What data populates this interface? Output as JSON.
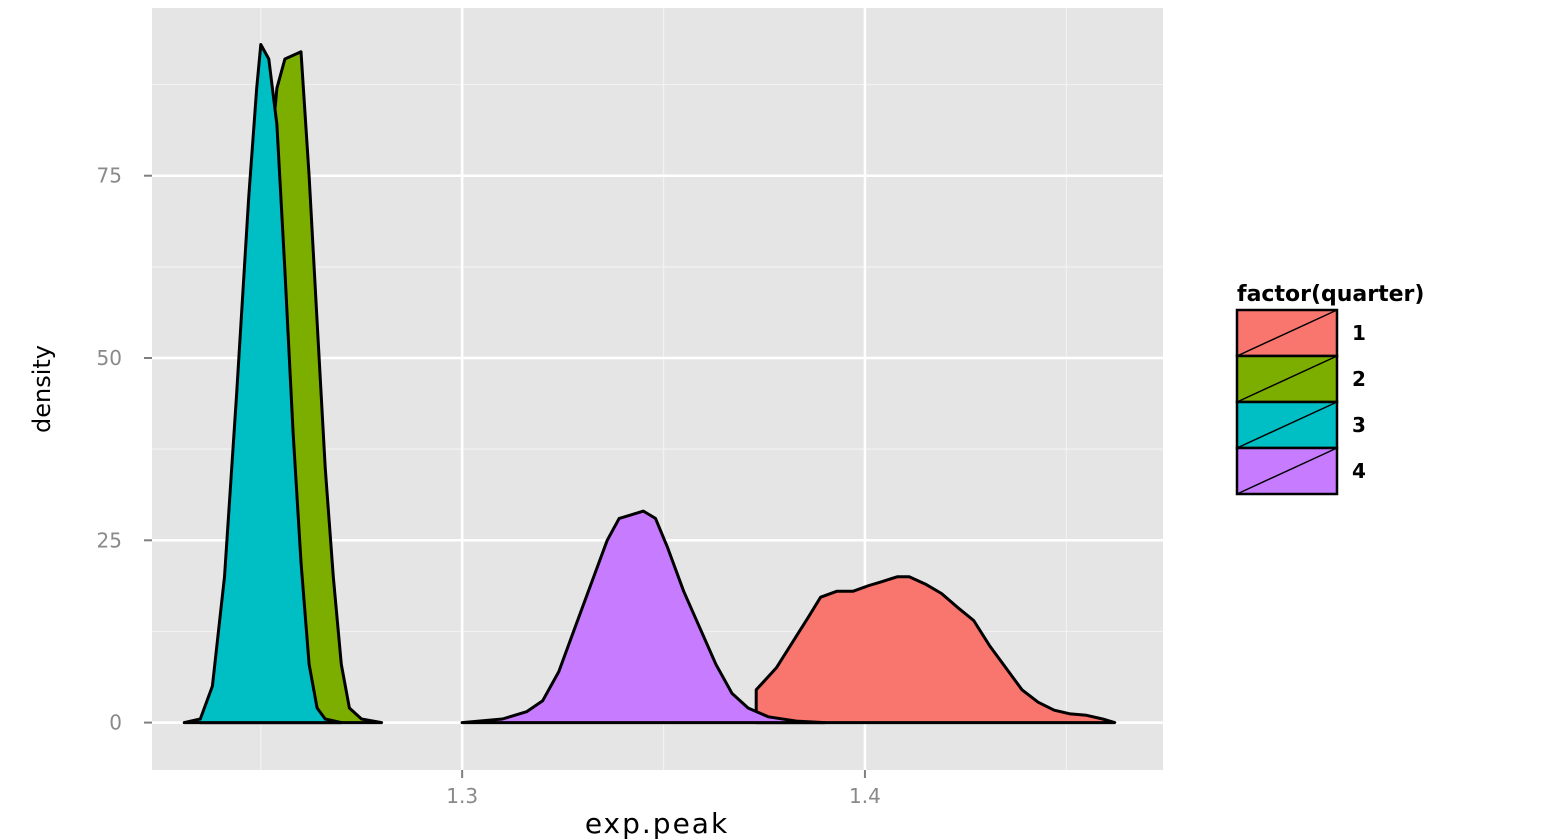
{
  "chart_data": {
    "type": "area",
    "subtype": "density",
    "xlabel": "exp.peak",
    "ylabel": "density",
    "xlim": [
      1.223,
      1.474
    ],
    "ylim": [
      -6.5,
      98
    ],
    "x_ticks": [
      1.3,
      1.4
    ],
    "x_tick_labels": [
      "1.3",
      "1.4"
    ],
    "y_ticks": [
      0,
      25,
      50,
      75
    ],
    "y_tick_labels": [
      "0",
      "25",
      "50",
      "75"
    ],
    "grid": true,
    "legend": {
      "title": "factor(quarter)",
      "placement": "right"
    },
    "series": [
      {
        "name": "1",
        "color": "#f8766d",
        "points": [
          [
            1.373,
            4.5
          ],
          [
            1.378,
            7.5
          ],
          [
            1.382,
            11
          ],
          [
            1.386,
            14.5
          ],
          [
            1.389,
            17.2
          ],
          [
            1.393,
            18
          ],
          [
            1.397,
            18
          ],
          [
            1.401,
            18.8
          ],
          [
            1.404,
            19.3
          ],
          [
            1.408,
            20
          ],
          [
            1.411,
            20
          ],
          [
            1.415,
            19
          ],
          [
            1.419,
            17.7
          ],
          [
            1.423,
            15.8
          ],
          [
            1.427,
            14
          ],
          [
            1.431,
            10.5
          ],
          [
            1.435,
            7.5
          ],
          [
            1.439,
            4.5
          ],
          [
            1.443,
            2.8
          ],
          [
            1.447,
            1.7
          ],
          [
            1.451,
            1.2
          ],
          [
            1.455,
            1
          ],
          [
            1.459,
            0.5
          ],
          [
            1.462,
            0
          ]
        ]
      },
      {
        "name": "2",
        "color": "#7cae00",
        "points": [
          [
            1.235,
            0
          ],
          [
            1.24,
            1
          ],
          [
            1.243,
            10
          ],
          [
            1.246,
            28
          ],
          [
            1.249,
            50
          ],
          [
            1.252,
            75
          ],
          [
            1.254,
            87
          ],
          [
            1.256,
            91
          ],
          [
            1.258,
            91.5
          ],
          [
            1.26,
            92
          ],
          [
            1.262,
            75
          ],
          [
            1.264,
            55
          ],
          [
            1.266,
            35
          ],
          [
            1.268,
            20
          ],
          [
            1.27,
            8
          ],
          [
            1.272,
            2
          ],
          [
            1.275,
            0.5
          ],
          [
            1.28,
            0
          ]
        ]
      },
      {
        "name": "3",
        "color": "#00bfc4",
        "points": [
          [
            1.231,
            0
          ],
          [
            1.235,
            0.5
          ],
          [
            1.238,
            5
          ],
          [
            1.241,
            20
          ],
          [
            1.244,
            45
          ],
          [
            1.247,
            72
          ],
          [
            1.249,
            87
          ],
          [
            1.25,
            93
          ],
          [
            1.252,
            91
          ],
          [
            1.254,
            82
          ],
          [
            1.256,
            62
          ],
          [
            1.258,
            40
          ],
          [
            1.26,
            22
          ],
          [
            1.262,
            8
          ],
          [
            1.264,
            2
          ],
          [
            1.266,
            0.5
          ],
          [
            1.27,
            0
          ]
        ]
      },
      {
        "name": "4",
        "color": "#c77cff",
        "points": [
          [
            1.3,
            0
          ],
          [
            1.31,
            0.5
          ],
          [
            1.316,
            1.5
          ],
          [
            1.32,
            3
          ],
          [
            1.324,
            7
          ],
          [
            1.328,
            13
          ],
          [
            1.332,
            19
          ],
          [
            1.336,
            25
          ],
          [
            1.339,
            28
          ],
          [
            1.342,
            28.5
          ],
          [
            1.345,
            29
          ],
          [
            1.348,
            28
          ],
          [
            1.351,
            24
          ],
          [
            1.355,
            18
          ],
          [
            1.359,
            13
          ],
          [
            1.363,
            8
          ],
          [
            1.367,
            4
          ],
          [
            1.371,
            2
          ],
          [
            1.376,
            0.8
          ],
          [
            1.383,
            0.2
          ],
          [
            1.39,
            0
          ]
        ]
      }
    ]
  }
}
